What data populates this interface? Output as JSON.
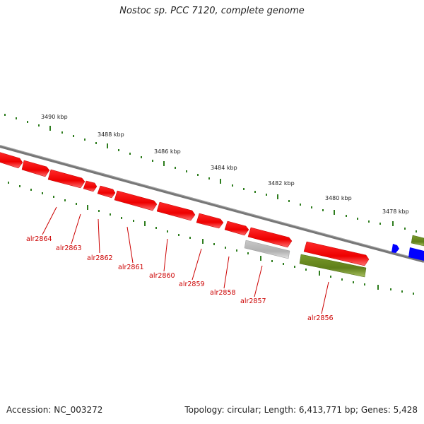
{
  "title": "Nostoc sp. PCC 7120, complete genome",
  "footer": {
    "accession": "Accession: NC_003272",
    "summary": "Topology: circular; Length: 6,413,771 bp; Genes: 5,428"
  },
  "scale_labels": [
    "3490 kbp",
    "3488 kbp",
    "3486 kbp",
    "3484 kbp",
    "3482 kbp",
    "3480 kbp",
    "3478 kbp"
  ],
  "gene_labels": [
    "alr2864",
    "alr2863",
    "alr2862",
    "alr2861",
    "alr2860",
    "alr2859",
    "alr2858",
    "alr2857",
    "alr2856"
  ],
  "colors": {
    "cds_forward": "#ff0000",
    "cds_other": "#6b8e23",
    "pseudo": "#b0b0b0",
    "blue_feature": "#0000ff",
    "backbone": "#777777",
    "tick": "#2e7d1e",
    "label": "#cc0000"
  }
}
